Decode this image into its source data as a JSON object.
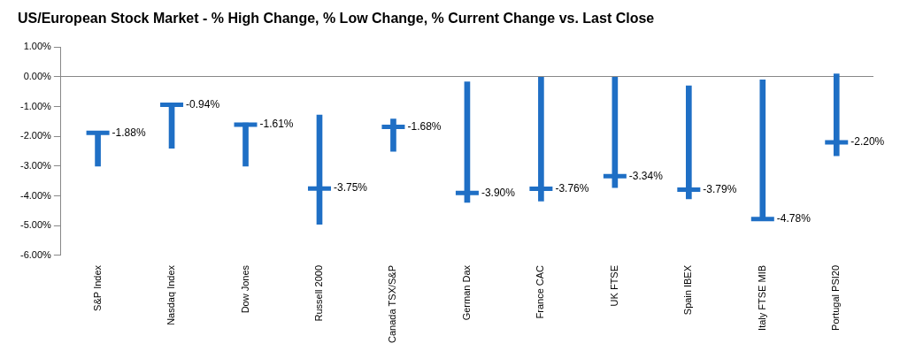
{
  "chart_data": {
    "type": "range",
    "title": "US/European Stock Market - % High Change, % Low Change, % Current Change vs. Last Close",
    "categories": [
      "S&P Index",
      "Nasdaq Index",
      "Dow Jones",
      "Russell 2000",
      "Canada TSX/S&P",
      "German Dax",
      "France CAC",
      "UK FTSE",
      "Spain IBEX",
      "Italy FTSE MIB",
      "Portugal PSI20"
    ],
    "high": [
      -1.85,
      -0.9,
      -1.55,
      -1.28,
      -1.42,
      -0.17,
      0.0,
      0.0,
      -0.3,
      -0.1,
      0.1
    ],
    "low": [
      -3.0,
      -2.4,
      -3.0,
      -4.95,
      -2.5,
      -4.22,
      -4.17,
      -3.72,
      -4.1,
      -4.8,
      -2.65
    ],
    "values": [
      -1.88,
      -0.94,
      -1.61,
      -3.75,
      -1.68,
      -3.9,
      -3.76,
      -3.34,
      -3.79,
      -4.78,
      -2.2
    ],
    "value_labels": [
      "-1.88%",
      "-0.94%",
      "-1.61%",
      "-3.75%",
      "-1.68%",
      "-3.90%",
      "-3.76%",
      "-3.34%",
      "-3.79%",
      "-4.78%",
      "-2.20%"
    ],
    "color": "#1f6fc5",
    "ylim": [
      -6,
      1
    ],
    "yticks": [
      {
        "value": -6,
        "label": "-6.00%"
      },
      {
        "value": -5,
        "label": "-5.00%"
      },
      {
        "value": -4,
        "label": "-4.00%"
      },
      {
        "value": -3,
        "label": "-3.00%"
      },
      {
        "value": -2,
        "label": "-2.00%"
      },
      {
        "value": -1,
        "label": "-1.00%"
      },
      {
        "value": 0,
        "label": "0.00%"
      },
      {
        "value": 1,
        "label": "1.00%"
      }
    ],
    "grid": false,
    "data_labels": true
  }
}
